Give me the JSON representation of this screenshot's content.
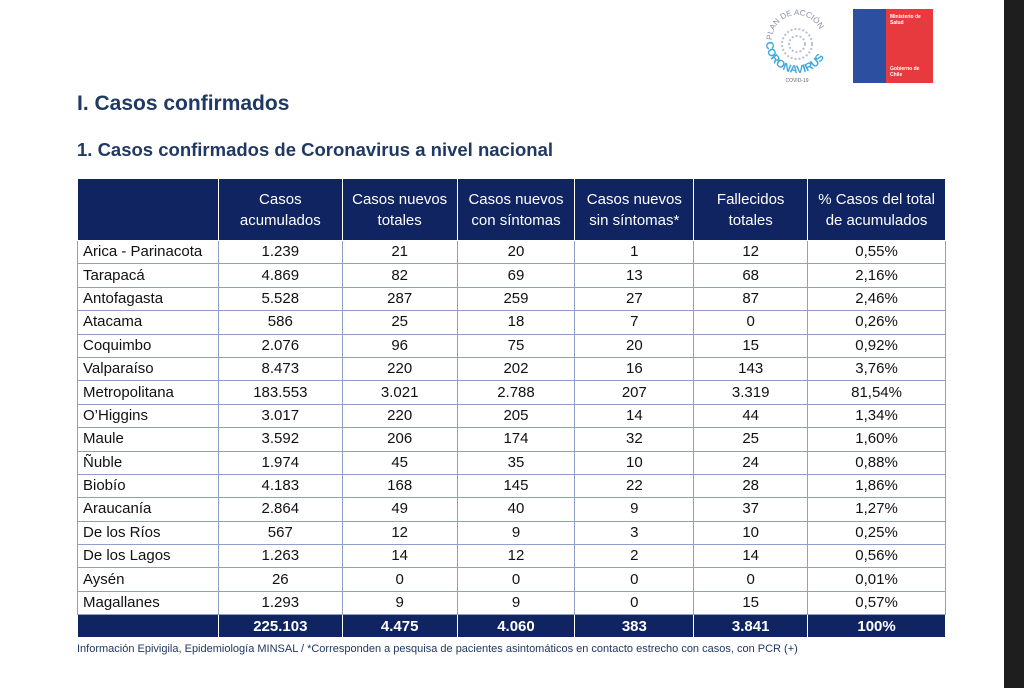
{
  "logos": {
    "coronavirus": {
      "top_text": "PLAN DE ACCIÓN",
      "main_text": "CORONAVIRUS",
      "sub_text": "COVID-19"
    },
    "ministry": {
      "name": "Ministerio de Salud",
      "government": "Gobierno de Chile"
    }
  },
  "section_title": "I. Casos confirmados",
  "subsection_title": "1. Casos confirmados de Coronavirus a nivel nacional",
  "table": {
    "headers": [
      "",
      "Casos acumulados",
      "Casos nuevos totales",
      "Casos nuevos con síntomas",
      "Casos nuevos sin síntomas*",
      "Fallecidos totales",
      "% Casos del total de acumulados"
    ],
    "rows": [
      [
        "Arica - Parinacota",
        "1.239",
        "21",
        "20",
        "1",
        "12",
        "0,55%"
      ],
      [
        "Tarapacá",
        "4.869",
        "82",
        "69",
        "13",
        "68",
        "2,16%"
      ],
      [
        "Antofagasta",
        "5.528",
        "287",
        "259",
        "27",
        "87",
        "2,46%"
      ],
      [
        "Atacama",
        "586",
        "25",
        "18",
        "7",
        "0",
        "0,26%"
      ],
      [
        "Coquimbo",
        "2.076",
        "96",
        "75",
        "20",
        "15",
        "0,92%"
      ],
      [
        "Valparaíso",
        "8.473",
        "220",
        "202",
        "16",
        "143",
        "3,76%"
      ],
      [
        "Metropolitana",
        "183.553",
        "3.021",
        "2.788",
        "207",
        "3.319",
        "81,54%"
      ],
      [
        "O’Higgins",
        "3.017",
        "220",
        "205",
        "14",
        "44",
        "1,34%"
      ],
      [
        "Maule",
        "3.592",
        "206",
        "174",
        "32",
        "25",
        "1,60%"
      ],
      [
        "Ñuble",
        "1.974",
        "45",
        "35",
        "10",
        "24",
        "0,88%"
      ],
      [
        "Biobío",
        "4.183",
        "168",
        "145",
        "22",
        "28",
        "1,86%"
      ],
      [
        "Araucanía",
        "2.864",
        "49",
        "40",
        "9",
        "37",
        "1,27%"
      ],
      [
        "De los Ríos",
        "567",
        "12",
        "9",
        "3",
        "10",
        "0,25%"
      ],
      [
        "De los Lagos",
        "1.263",
        "14",
        "12",
        "2",
        "14",
        "0,56%"
      ],
      [
        "Aysén",
        "26",
        "0",
        "0",
        "0",
        "0",
        "0,01%"
      ],
      [
        "Magallanes",
        "1.293",
        "9",
        "9",
        "0",
        "15",
        "0,57%"
      ]
    ],
    "totals": [
      "",
      "225.103",
      "4.475",
      "4.060",
      "383",
      "3.841",
      "100%"
    ]
  },
  "footnote": "Información Epivigila, Epidemiología MINSAL / *Corresponden a pesquisa de pacientes asintomáticos en contacto estrecho con casos, con PCR (+)"
}
